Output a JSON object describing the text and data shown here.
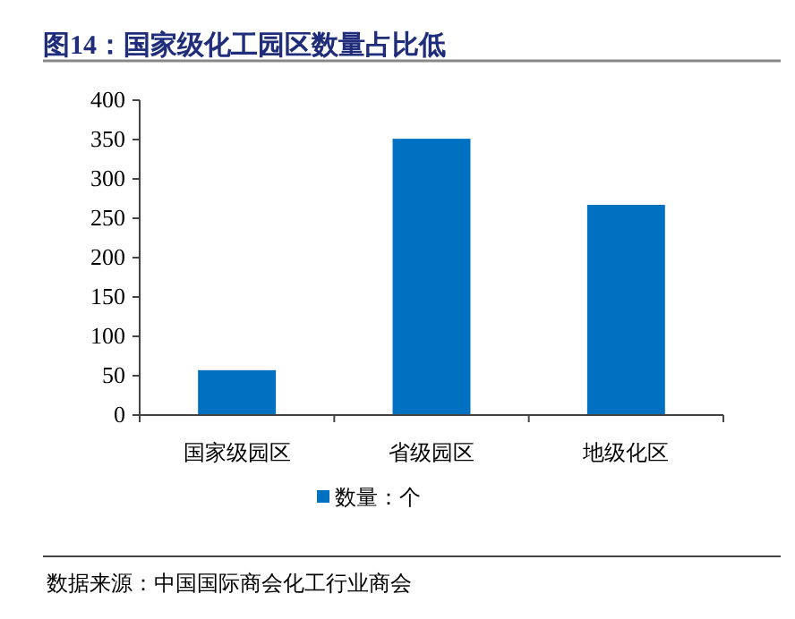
{
  "chart_data": {
    "type": "bar",
    "title": "图14：国家级化工园区数量占比低",
    "categories": [
      "国家级园区",
      "省级园区",
      "地级化区"
    ],
    "series": [
      {
        "name": "数量：个",
        "color": "#0070c0",
        "values": [
          57,
          351,
          267
        ]
      }
    ],
    "ylim": [
      0,
      400
    ],
    "yticks": [
      0,
      50,
      100,
      150,
      200,
      250,
      300,
      350,
      400
    ],
    "grid": false,
    "legend": "bottom",
    "annotations": [
      "数据来源：中国国际商会化工行业商会"
    ]
  }
}
